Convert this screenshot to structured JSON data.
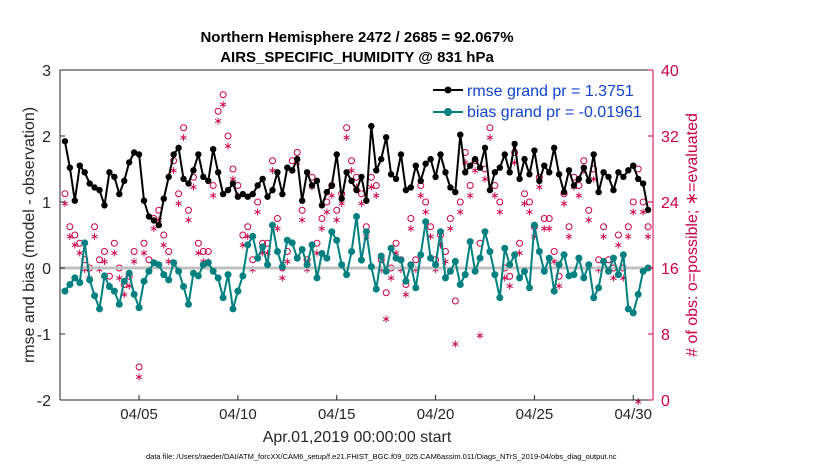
{
  "chart_data": {
    "type": "line",
    "title": "Northern Hemisphere 2472 / 2685 = 92.067%",
    "subtitle": "AIRS_SPECIFIC_HUMIDITY @ 831 hPa",
    "xlabel": "Apr.01,2019 00:00:00 start",
    "ylabel": "rmse and bias (model - observation)",
    "y2label": "# of obs: o=possible; ∗=evaluated",
    "xlim": [
      1,
      31
    ],
    "ylim": [
      -2,
      3
    ],
    "y2lim": [
      0,
      40
    ],
    "xticks": [
      5,
      10,
      15,
      20,
      25,
      30
    ],
    "xtick_labels": [
      "04/05",
      "04/10",
      "04/15",
      "04/20",
      "04/25",
      "04/30"
    ],
    "yticks": [
      -2,
      -1,
      0,
      1,
      2,
      3
    ],
    "ytick_labels": [
      "-2",
      "-1",
      "0",
      "1",
      "2",
      "3"
    ],
    "y2ticks": [
      0,
      8,
      16,
      24,
      32,
      40
    ],
    "y2tick_labels": [
      "0",
      "8",
      "16",
      "24",
      "32",
      "40"
    ],
    "zero_line": 0,
    "legend": {
      "placement": "top-right",
      "entries": [
        "rmse grand pr = 1.3751",
        "bias grand pr = -0.01961"
      ]
    },
    "footnote": "data file: /Users/raeder/DAI/ATM_forcXX/CAM6_setup/f.e21.FHIST_BGC.f09_025.CAM6assim.011/Diags_NTrS_2019-04/obs_diag_output.nc",
    "colors": {
      "rmse": "#000000",
      "bias": "#008080",
      "obs": "#cc0044",
      "zero": "#c0c0c0",
      "legend_text": "#1144cc"
    },
    "series": [
      {
        "name": "rmse",
        "x": [
          1.25,
          1.5,
          1.75,
          2.0,
          2.25,
          2.5,
          2.75,
          3.0,
          3.25,
          3.5,
          3.75,
          4.0,
          4.25,
          4.5,
          4.75,
          5.0,
          5.25,
          5.5,
          5.75,
          6.0,
          6.25,
          6.5,
          6.75,
          7.0,
          7.25,
          7.5,
          7.75,
          8.0,
          8.25,
          8.5,
          8.75,
          9.0,
          9.25,
          9.5,
          9.75,
          10.0,
          10.25,
          10.5,
          10.75,
          11.0,
          11.25,
          11.5,
          11.75,
          12.0,
          12.25,
          12.5,
          12.75,
          13.0,
          13.25,
          13.5,
          13.75,
          14.0,
          14.25,
          14.5,
          14.75,
          15.0,
          15.25,
          15.5,
          15.75,
          16.0,
          16.25,
          16.5,
          16.75,
          17.0,
          17.25,
          17.5,
          17.75,
          18.0,
          18.25,
          18.5,
          18.75,
          19.0,
          19.25,
          19.5,
          19.75,
          20.0,
          20.25,
          20.5,
          20.75,
          21.0,
          21.25,
          21.5,
          21.75,
          22.0,
          22.25,
          22.5,
          22.75,
          23.0,
          23.25,
          23.5,
          23.75,
          24.0,
          24.25,
          24.5,
          24.75,
          25.0,
          25.25,
          25.5,
          25.75,
          26.0,
          26.25,
          26.5,
          26.75,
          27.0,
          27.25,
          27.5,
          27.75,
          28.0,
          28.25,
          28.5,
          28.75,
          29.0,
          29.25,
          29.5,
          29.75,
          30.0,
          30.25,
          30.5,
          30.75
        ],
        "values": [
          1.92,
          1.52,
          1.02,
          1.55,
          1.45,
          1.28,
          1.22,
          1.18,
          0.95,
          1.45,
          1.38,
          1.12,
          1.32,
          1.6,
          1.75,
          1.72,
          1.02,
          0.78,
          0.72,
          0.65,
          1.05,
          1.38,
          1.72,
          1.82,
          1.35,
          1.28,
          1.48,
          1.72,
          1.38,
          1.32,
          1.8,
          1.45,
          1.12,
          1.18,
          1.28,
          1.08,
          1.12,
          1.08,
          1.12,
          1.25,
          1.35,
          1.08,
          1.18,
          1.45,
          1.12,
          1.52,
          1.48,
          1.65,
          1.02,
          1.45,
          1.25,
          1.32,
          0.95,
          1.15,
          1.25,
          1.72,
          1.05,
          1.45,
          1.32,
          1.18,
          1.38,
          1.02,
          2.15,
          1.48,
          1.65,
          1.98,
          1.42,
          1.35,
          1.72,
          1.18,
          1.22,
          1.55,
          1.32,
          1.58,
          1.65,
          1.38,
          1.72,
          1.45,
          1.22,
          1.15,
          2.02,
          1.45,
          1.55,
          1.65,
          1.52,
          1.82,
          1.18,
          1.45,
          1.52,
          1.72,
          1.45,
          1.88,
          1.35,
          1.65,
          1.42,
          1.78,
          1.32,
          1.55,
          1.45,
          1.82,
          1.42,
          1.15,
          1.48,
          1.25,
          1.35,
          1.52,
          1.32,
          1.72,
          1.15,
          1.45,
          1.38,
          1.18,
          1.45,
          1.38,
          1.48,
          1.55,
          1.35,
          1.28,
          0.88
        ],
        "note": "estimated from plot"
      },
      {
        "name": "bias",
        "x": [
          1.25,
          1.5,
          1.75,
          2.0,
          2.25,
          2.5,
          2.75,
          3.0,
          3.25,
          3.5,
          3.75,
          4.0,
          4.25,
          4.5,
          4.75,
          5.0,
          5.25,
          5.5,
          5.75,
          6.0,
          6.25,
          6.5,
          6.75,
          7.0,
          7.25,
          7.5,
          7.75,
          8.0,
          8.25,
          8.5,
          8.75,
          9.0,
          9.25,
          9.5,
          9.75,
          10.0,
          10.25,
          10.5,
          10.75,
          11.0,
          11.25,
          11.5,
          11.75,
          12.0,
          12.25,
          12.5,
          12.75,
          13.0,
          13.25,
          13.5,
          13.75,
          14.0,
          14.25,
          14.5,
          14.75,
          15.0,
          15.25,
          15.5,
          15.75,
          16.0,
          16.25,
          16.5,
          16.75,
          17.0,
          17.25,
          17.5,
          17.75,
          18.0,
          18.25,
          18.5,
          18.75,
          19.0,
          19.25,
          19.5,
          19.75,
          20.0,
          20.25,
          20.5,
          20.75,
          21.0,
          21.25,
          21.5,
          21.75,
          22.0,
          22.25,
          22.5,
          22.75,
          23.0,
          23.25,
          23.5,
          23.75,
          24.0,
          24.25,
          24.5,
          24.75,
          25.0,
          25.25,
          25.5,
          25.75,
          26.0,
          26.25,
          26.5,
          26.75,
          27.0,
          27.25,
          27.5,
          27.75,
          28.0,
          28.25,
          28.5,
          28.75,
          29.0,
          29.25,
          29.5,
          29.75,
          30.0,
          30.25,
          30.5,
          30.75
        ],
        "values": [
          -0.35,
          -0.25,
          -0.15,
          -0.22,
          0.38,
          -0.18,
          -0.42,
          -0.62,
          -0.12,
          -0.28,
          -0.35,
          -0.55,
          -0.2,
          -0.08,
          -0.4,
          -0.6,
          -0.2,
          -0.05,
          0.08,
          0.05,
          -0.1,
          -0.18,
          0.08,
          -0.05,
          -0.28,
          -0.55,
          -0.08,
          -0.12,
          0.05,
          0.08,
          -0.05,
          -0.15,
          -0.45,
          -0.1,
          -0.62,
          -0.35,
          -0.12,
          0.35,
          0.48,
          0.15,
          0.32,
          0.05,
          0.65,
          0.25,
          0.02,
          0.42,
          0.38,
          0.15,
          0.28,
          0.05,
          0.35,
          -0.15,
          0.22,
          0.15,
          0.55,
          0.42,
          0.05,
          -0.1,
          0.25,
          0.78,
          0.12,
          0.55,
          0.02,
          -0.32,
          0.18,
          -0.05,
          0.3,
          0.15,
          0.12,
          -0.2,
          0.05,
          -0.3,
          0.2,
          0.7,
          0.15,
          0.05,
          0.55,
          -0.15,
          -0.05,
          0.1,
          -0.25,
          -0.1,
          0.4,
          -0.05,
          0.15,
          0.55,
          0.25,
          -0.1,
          -0.45,
          0.3,
          0.05,
          0.2,
          -0.15,
          -0.05,
          -0.3,
          0.65,
          0.25,
          -0.05,
          0.15,
          -0.35,
          0.05,
          0.2,
          -0.12,
          -0.1,
          0.15,
          -0.15,
          0.05,
          -0.45,
          -0.3,
          0.1,
          -0.05,
          0.15,
          -0.1,
          0.2,
          -0.62,
          -0.68,
          -0.4,
          -0.05,
          0.0
        ],
        "note": "estimated from plot"
      },
      {
        "name": "possible",
        "axis": "right",
        "x": [
          1.25,
          1.5,
          1.75,
          2.0,
          2.25,
          2.5,
          2.75,
          3.0,
          3.25,
          3.5,
          3.75,
          4.0,
          4.25,
          4.5,
          4.75,
          5.0,
          5.25,
          5.5,
          5.75,
          6.0,
          6.25,
          6.5,
          6.75,
          7.0,
          7.25,
          7.5,
          7.75,
          8.0,
          8.25,
          8.5,
          8.75,
          9.0,
          9.25,
          9.5,
          9.75,
          10.0,
          10.25,
          10.5,
          10.75,
          11.0,
          11.25,
          11.5,
          11.75,
          12.0,
          12.25,
          12.5,
          12.75,
          13.0,
          13.25,
          13.5,
          13.75,
          14.0,
          14.25,
          14.5,
          14.75,
          15.0,
          15.25,
          15.5,
          15.75,
          16.0,
          16.25,
          16.5,
          16.75,
          17.0,
          17.25,
          17.5,
          17.75,
          18.0,
          18.25,
          18.5,
          18.75,
          19.0,
          19.25,
          19.5,
          19.75,
          20.0,
          20.25,
          20.5,
          20.75,
          21.0,
          21.25,
          21.5,
          21.75,
          22.0,
          22.25,
          22.5,
          22.75,
          23.0,
          23.25,
          23.5,
          23.75,
          24.0,
          24.25,
          24.5,
          24.75,
          25.0,
          25.25,
          25.5,
          25.75,
          26.0,
          26.25,
          26.5,
          26.75,
          27.0,
          27.25,
          27.5,
          27.75,
          28.0,
          28.25,
          28.5,
          28.75,
          29.0,
          29.25,
          29.5,
          29.75,
          30.0,
          30.25,
          30.5,
          30.75
        ],
        "values": [
          25,
          21,
          20,
          19,
          17,
          16,
          21,
          17,
          18,
          15,
          19,
          16,
          14,
          15,
          18,
          4,
          19,
          17,
          22,
          23,
          20,
          18,
          29,
          25,
          33,
          23,
          27,
          19,
          18,
          18,
          26,
          35,
          37,
          32,
          28,
          26,
          20,
          21,
          17,
          24,
          19,
          19,
          29,
          22,
          16,
          18,
          29,
          30,
          23,
          17,
          27,
          19,
          22,
          24,
          26,
          23,
          25,
          33,
          29,
          27,
          25,
          21,
          27,
          26,
          17,
          13,
          16,
          19,
          17,
          14,
          22,
          17,
          26,
          24,
          21,
          17,
          20,
          18,
          22,
          12,
          24,
          30,
          26,
          29,
          19,
          28,
          33,
          26,
          24,
          16,
          15,
          30,
          19,
          25,
          24,
          21,
          27,
          22,
          22,
          18,
          15,
          25,
          21,
          27,
          26,
          29,
          23,
          28,
          17,
          21,
          17,
          16,
          20,
          16,
          21,
          24,
          28,
          24,
          21
        ],
        "note": "estimated from plot"
      },
      {
        "name": "evaluated",
        "axis": "right",
        "x": [
          1.25,
          1.5,
          1.75,
          2.0,
          2.25,
          2.5,
          2.75,
          3.0,
          3.25,
          3.5,
          3.75,
          4.0,
          4.25,
          4.5,
          4.75,
          5.0,
          5.25,
          5.5,
          5.75,
          6.0,
          6.25,
          6.5,
          6.75,
          7.0,
          7.25,
          7.5,
          7.75,
          8.0,
          8.25,
          8.5,
          8.75,
          9.0,
          9.25,
          9.5,
          9.75,
          10.0,
          10.25,
          10.5,
          10.75,
          11.0,
          11.25,
          11.5,
          11.75,
          12.0,
          12.25,
          12.5,
          12.75,
          13.0,
          13.25,
          13.5,
          13.75,
          14.0,
          14.25,
          14.5,
          14.75,
          15.0,
          15.25,
          15.5,
          15.75,
          16.0,
          16.25,
          16.5,
          16.75,
          17.0,
          17.25,
          17.5,
          17.75,
          18.0,
          18.25,
          18.5,
          18.75,
          19.0,
          19.25,
          19.5,
          19.75,
          20.0,
          20.25,
          20.5,
          20.75,
          21.0,
          21.25,
          21.5,
          21.75,
          22.0,
          22.25,
          22.5,
          22.75,
          23.0,
          23.25,
          23.5,
          23.75,
          24.0,
          24.25,
          24.5,
          24.75,
          25.0,
          25.25,
          25.5,
          25.75,
          26.0,
          26.25,
          26.5,
          26.75,
          27.0,
          27.25,
          27.5,
          27.75,
          28.0,
          28.25,
          28.5,
          28.75,
          29.0,
          29.25,
          29.5,
          29.75,
          30.0,
          30.25,
          30.5,
          30.75
        ],
        "values": [
          24,
          20,
          19,
          18,
          16,
          15,
          20,
          16,
          17,
          14,
          18,
          15,
          13,
          14,
          17,
          3,
          18,
          16,
          21,
          22,
          19,
          17,
          28,
          24,
          32,
          22,
          26,
          18,
          17,
          17,
          25,
          34,
          36,
          31,
          27,
          25,
          19,
          20,
          16,
          23,
          18,
          18,
          28,
          21,
          15,
          17,
          28,
          29,
          22,
          16,
          26,
          18,
          21,
          23,
          25,
          22,
          24,
          32,
          28,
          26,
          24,
          20,
          26,
          25,
          16,
          10,
          15,
          18,
          16,
          13,
          21,
          16,
          25,
          23,
          20,
          16,
          19,
          17,
          21,
          7,
          23,
          29,
          25,
          28,
          8,
          27,
          32,
          25,
          23,
          15,
          14,
          29,
          18,
          24,
          23,
          20,
          26,
          21,
          21,
          17,
          14,
          24,
          20,
          26,
          25,
          28,
          22,
          27,
          16,
          20,
          16,
          15,
          19,
          15,
          20,
          23,
          0,
          23,
          20
        ],
        "note": "estimated from plot"
      }
    ]
  }
}
